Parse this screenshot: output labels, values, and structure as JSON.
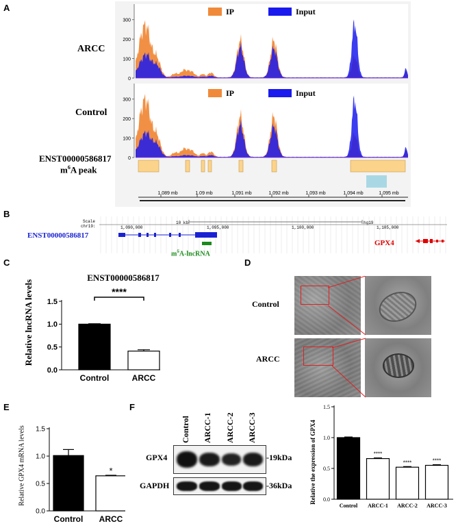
{
  "panels": {
    "A": "A",
    "B": "B",
    "C": "C",
    "D": "D",
    "E": "E",
    "F": "F"
  },
  "colors": {
    "ip": "#f08a3a",
    "input": "#1a1aee",
    "peak": "#fbd38a",
    "peak_border": "#c79a4a",
    "peak_alt": "#a9d8e4",
    "gpx4": "#e00000",
    "lnc": "#1a22d4",
    "m6a": "#1a8a1a"
  },
  "panelA": {
    "legend_ip": "IP",
    "legend_input": "Input",
    "label_arcc": "ARCC",
    "label_control": "Control",
    "label_transcript": "ENST00000586817",
    "label_peak_pre": "m",
    "label_peak_sup": "6",
    "label_peak_post": "A peak",
    "yticks": [
      "300",
      "200",
      "100",
      "0"
    ],
    "xticks": [
      "1.089 mb",
      "1.09 mb",
      "1.091 mb",
      "1.092 mb",
      "1.093 mb",
      "1.094 mb",
      "1.095 mb"
    ]
  },
  "panelB": {
    "scale_label": "Scale",
    "chr_label": "chr19:",
    "scale_text": "10 kb",
    "assembly": "hg19",
    "coords": [
      "1,090,000",
      "1,095,000",
      "1,100,000",
      "1,105,000"
    ],
    "lnc_label": "ENST00000586817",
    "m6a_pre": "m",
    "m6a_sup": "6",
    "m6a_post": "A-lncRNA",
    "gpx4_label": "GPX4"
  },
  "chart_data": [
    {
      "type": "bar",
      "panel": "C",
      "title": "ENST00000586817",
      "ylabel": "Relative lncRNA levels",
      "categories": [
        "Control",
        "ARCC"
      ],
      "values": [
        1.0,
        0.41
      ],
      "errors": [
        0.01,
        0.03
      ],
      "ylim": [
        0,
        1.5
      ],
      "yticks": [
        "0.0",
        "0.5",
        "1.0",
        "1.5"
      ],
      "significance": "****"
    },
    {
      "type": "bar",
      "panel": "E",
      "ylabel": "Relative GPX4 mRNA levels",
      "categories": [
        "Control",
        "ARCC"
      ],
      "values": [
        1.01,
        0.64
      ],
      "errors": [
        0.11,
        0.01
      ],
      "ylim": [
        0,
        1.5
      ],
      "yticks": [
        "0.0",
        "0.5",
        "1.0",
        "1.5"
      ],
      "significance": "*"
    },
    {
      "type": "bar",
      "panel": "F",
      "ylabel": "Relative the expression of GPX4",
      "categories": [
        "Control",
        "ARCC-1",
        "ARCC-2",
        "ARCC-3"
      ],
      "values": [
        1.0,
        0.66,
        0.52,
        0.55
      ],
      "errors": [
        0.01,
        0.01,
        0.01,
        0.01
      ],
      "ylim": [
        0,
        1.5
      ],
      "yticks": [
        "0.0",
        "0.5",
        "1.0",
        "1.5"
      ],
      "significance": [
        "",
        "****",
        "****",
        "****"
      ]
    }
  ],
  "panelD": {
    "label_control": "Control",
    "label_arcc": "ARCC"
  },
  "panelF_blot": {
    "lanes": [
      "Control",
      "ARCC-1",
      "ARCC-2",
      "ARCC-3"
    ],
    "rows": [
      {
        "name": "GPX4",
        "kda": "-19kDa"
      },
      {
        "name": "GAPDH",
        "kda": "-36kDa"
      }
    ]
  }
}
